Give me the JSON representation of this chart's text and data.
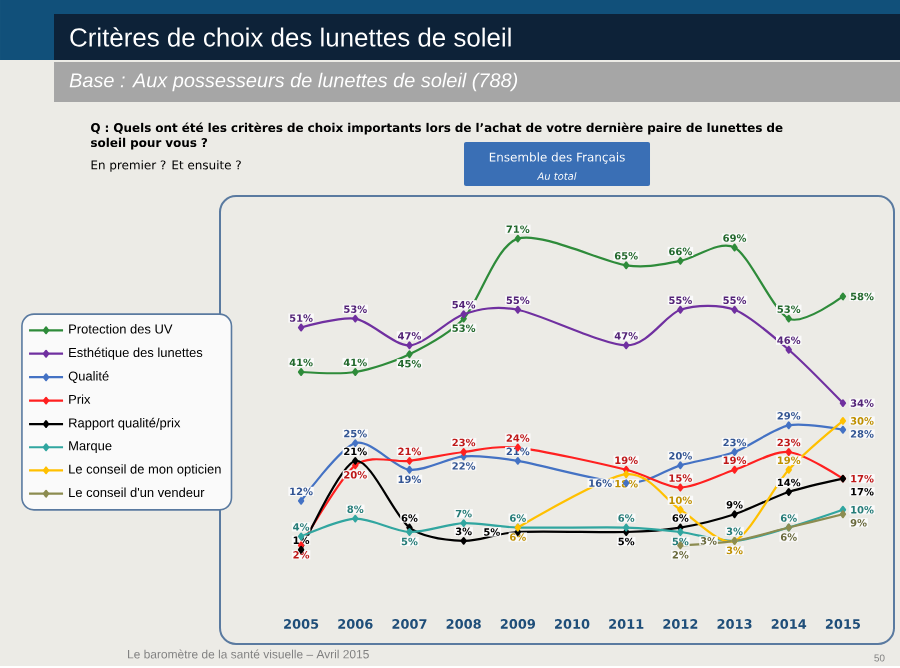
{
  "chart_data": {
    "type": "line",
    "title": "Critères de choix des lunettes de soleil",
    "subtitle": "Base : Aux possesseurs de lunettes de soleil (788)",
    "annotations": [
      "Q : Quels ont été les critères de choix importants lors de l’achat de votre dernière paire de lunettes de soleil pour vous ?",
      "En premier ? Et ensuite ?",
      "Ensemble des Français",
      "Au total",
      "Le baromètre de la santé visuelle – Avril 2015",
      "50"
    ],
    "categories": [
      "2005",
      "2006",
      "2007",
      "2008",
      "2009",
      "2010",
      "2011",
      "2012",
      "2013",
      "2014",
      "2015"
    ],
    "series": [
      {
        "name": "Protection des UV",
        "color": "#2e8b3a",
        "values": [
          41,
          41,
          45,
          53,
          71,
          null,
          65,
          66,
          69,
          53,
          58
        ],
        "value_labels": [
          "41%",
          "41%",
          "45%",
          "53%",
          "71%",
          null,
          "65%",
          "66%",
          "69%",
          "53%",
          "58%"
        ]
      },
      {
        "name": "Esthétique des lunettes",
        "color": "#7030a0",
        "values": [
          51,
          53,
          47,
          54,
          55,
          null,
          47,
          55,
          55,
          46,
          34
        ],
        "value_labels": [
          "51%",
          "53%",
          "47%",
          "54%",
          "55%",
          null,
          "47%",
          "55%",
          "55%",
          "46%",
          "34%"
        ]
      },
      {
        "name": "Qualité",
        "color": "#4472c4",
        "values": [
          12,
          25,
          19,
          22,
          21,
          null,
          16,
          20,
          23,
          29,
          28
        ],
        "value_labels": [
          "12%",
          "25%",
          "19%",
          "22%",
          "21%",
          null,
          "16%",
          "20%",
          "23%",
          "29%",
          "28%"
        ]
      },
      {
        "name": "Prix",
        "color": "#ff2020",
        "values": [
          2,
          20,
          21,
          23,
          24,
          null,
          19,
          15,
          19,
          23,
          17
        ],
        "value_labels": [
          "2%",
          "20%",
          "21%",
          "23%",
          "24%",
          null,
          "19%",
          "15%",
          "19%",
          "23%",
          "17%"
        ]
      },
      {
        "name": "Rapport qualité/prix",
        "color": "#000000",
        "values": [
          1,
          21,
          6,
          3,
          5,
          null,
          5,
          6,
          9,
          14,
          17
        ],
        "value_labels": [
          "1%",
          "21%",
          "6%",
          "3%",
          "5%",
          null,
          "5%",
          "6%",
          "9%",
          "14%",
          "17%"
        ]
      },
      {
        "name": "Marque",
        "color": "#31a6a0",
        "values": [
          4,
          8,
          5,
          7,
          6,
          null,
          6,
          5,
          3,
          6,
          10
        ],
        "value_labels": [
          "4%",
          "8%",
          "5%",
          "7%",
          "6%",
          null,
          "6%",
          "5%",
          "3%",
          "6%",
          "10%"
        ]
      },
      {
        "name": "Le conseil de mon opticien",
        "color": "#ffc000",
        "values": [
          null,
          null,
          null,
          null,
          6,
          null,
          18,
          10,
          3,
          19,
          30
        ],
        "value_labels": [
          null,
          null,
          null,
          null,
          "6%",
          null,
          "18%",
          "10%",
          "3%",
          "19%",
          "30%"
        ]
      },
      {
        "name": "Le conseil d'un vendeur",
        "color": "#8c8c50",
        "values": [
          null,
          null,
          null,
          null,
          null,
          null,
          null,
          2,
          3,
          6,
          9
        ],
        "value_labels": [
          null,
          null,
          null,
          null,
          null,
          null,
          null,
          "2%",
          "3%",
          "6%",
          "9%"
        ]
      }
    ],
    "legend": "left",
    "marker": "diamond",
    "line_style": "solid",
    "grid": false
  }
}
